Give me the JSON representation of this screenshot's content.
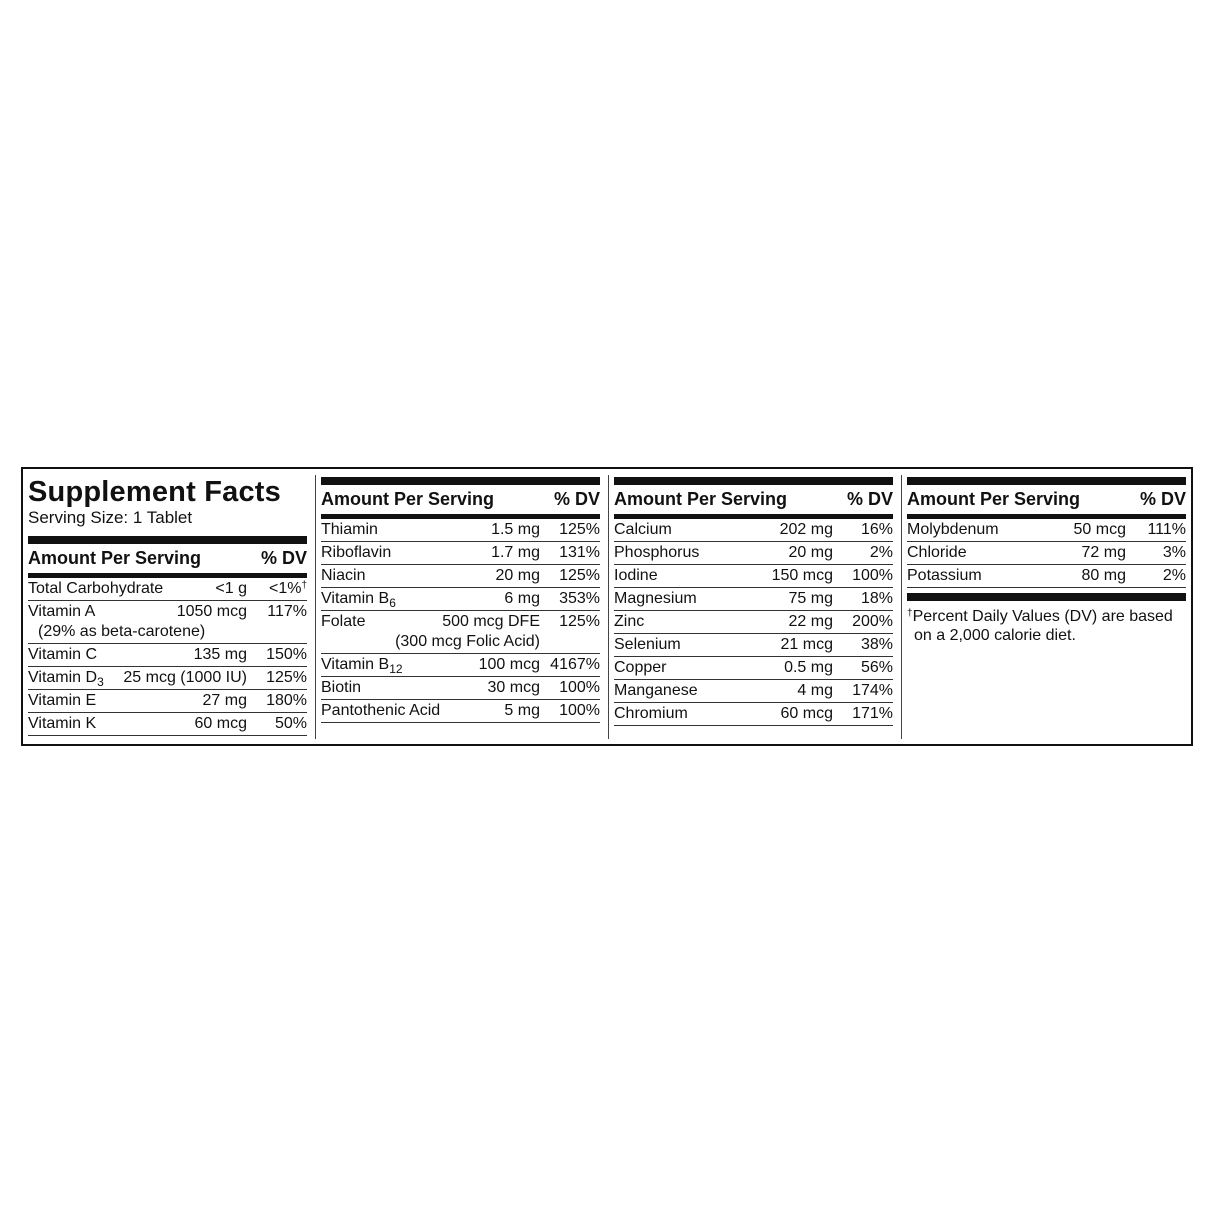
{
  "title": "Supplement Facts",
  "serving_size": "Serving Size: 1 Tablet",
  "header": {
    "amount": "Amount Per Serving",
    "dv": "% DV"
  },
  "columns": [
    {
      "rows": [
        {
          "name": "Total Carbohydrate",
          "amount": "<1 g",
          "dv": "<1%",
          "dv_mark": "†"
        },
        {
          "name": "Vitamin A",
          "amount": "1050 mcg",
          "dv": "117%",
          "note": "(29% as beta-carotene)"
        },
        {
          "name": "Vitamin C",
          "amount": "135 mg",
          "dv": "150%"
        },
        {
          "name": "Vitamin D",
          "sub": "3",
          "amount": "25 mcg (1000 IU)",
          "dv": "125%"
        },
        {
          "name": "Vitamin E",
          "amount": "27 mg",
          "dv": "180%"
        },
        {
          "name": "Vitamin K",
          "amount": "60 mcg",
          "dv": "50%"
        }
      ]
    },
    {
      "rows": [
        {
          "name": "Thiamin",
          "amount": "1.5 mg",
          "dv": "125%"
        },
        {
          "name": "Riboflavin",
          "amount": "1.7 mg",
          "dv": "131%"
        },
        {
          "name": "Niacin",
          "amount": "20 mg",
          "dv": "125%"
        },
        {
          "name": "Vitamin B",
          "sub": "6",
          "amount": "6 mg",
          "dv": "353%"
        },
        {
          "name": "Folate",
          "amount": "500 mcg DFE",
          "dv": "125%",
          "note2": "(300 mcg Folic Acid)"
        },
        {
          "name": "Vitamin B",
          "sub": "12",
          "amount": "100 mcg",
          "dv": "4167%"
        },
        {
          "name": "Biotin",
          "amount": "30 mcg",
          "dv": "100%"
        },
        {
          "name": "Pantothenic Acid",
          "amount": "5 mg",
          "dv": "100%"
        }
      ]
    },
    {
      "rows": [
        {
          "name": "Calcium",
          "amount": "202 mg",
          "dv": "16%"
        },
        {
          "name": "Phosphorus",
          "amount": "20 mg",
          "dv": "2%"
        },
        {
          "name": "Iodine",
          "amount": "150 mcg",
          "dv": "100%"
        },
        {
          "name": "Magnesium",
          "amount": "75 mg",
          "dv": "18%"
        },
        {
          "name": "Zinc",
          "amount": "22 mg",
          "dv": "200%"
        },
        {
          "name": "Selenium",
          "amount": "21 mcg",
          "dv": "38%"
        },
        {
          "name": "Copper",
          "amount": "0.5 mg",
          "dv": "56%"
        },
        {
          "name": "Manganese",
          "amount": "4 mg",
          "dv": "174%"
        },
        {
          "name": "Chromium",
          "amount": "60 mcg",
          "dv": "171%"
        }
      ]
    },
    {
      "rows": [
        {
          "name": "Molybdenum",
          "amount": "50 mcg",
          "dv": "111%"
        },
        {
          "name": "Chloride",
          "amount": "72 mg",
          "dv": "3%"
        },
        {
          "name": "Potassium",
          "amount": "80 mg",
          "dv": "2%"
        }
      ]
    }
  ],
  "footnote": {
    "mark": "†",
    "line1": "Percent Daily Values (DV) are based",
    "line2": "on a 2,000 calorie diet."
  }
}
